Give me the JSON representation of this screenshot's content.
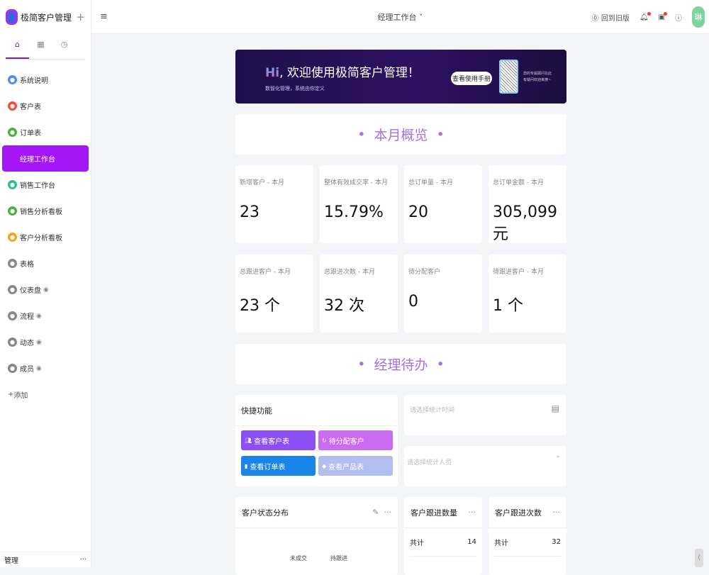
{
  "app": {
    "name": "极简客户管理",
    "avatar_char": "琳"
  },
  "sidebar": {
    "items": [
      {
        "label": "系统说明",
        "color": "#4f8cf7",
        "eye": false
      },
      {
        "label": "客户表",
        "color": "#f0503c",
        "eye": false
      },
      {
        "label": "订单表",
        "color": "#49b43c",
        "eye": false
      },
      {
        "label": "经理工作台",
        "color": "#a416f5",
        "eye": false,
        "active": true
      },
      {
        "label": "销售工作台",
        "color": "#2fbf8f",
        "eye": false
      },
      {
        "label": "销售分析看板",
        "color": "#49b43c",
        "eye": false
      },
      {
        "label": "客户分析看板",
        "color": "#f7a51c",
        "eye": false
      },
      {
        "label": "表格",
        "color": "#888",
        "eye": false
      },
      {
        "label": "仪表盘",
        "color": "#888",
        "eye": true
      },
      {
        "label": "流程",
        "color": "#888",
        "eye": true
      },
      {
        "label": "动态",
        "color": "#888",
        "eye": true
      },
      {
        "label": "成员",
        "color": "#888",
        "eye": true
      }
    ],
    "add": "添加",
    "footer": "管理"
  },
  "topbar": {
    "title": "经理工作台",
    "back_old": "回到旧版"
  },
  "banner": {
    "hi": "Hi",
    "title": "欢迎使用极简客户管理！",
    "subtitle": "数智化管理，系统由你定义",
    "button": "查看使用手册",
    "qr_text1": "您的专属顾问在此",
    "qr_text2": "有疑问欢迎来撩~"
  },
  "section1": "本月概览",
  "stats": [
    {
      "label": "新增客户 - 本月",
      "value": "23"
    },
    {
      "label": "整体有效成交率 - 本月",
      "value": "15.79%"
    },
    {
      "label": "总订单量 - 本月",
      "value": "20"
    },
    {
      "label": "总订单金额 - 本月",
      "value": "305,099 元"
    },
    {
      "label": "总跟进客户 - 本月",
      "value": "23 个"
    },
    {
      "label": "总跟进次数 - 本月",
      "value": "32 次"
    },
    {
      "label": "待分配客户",
      "value": "0"
    },
    {
      "label": "待跟进客户 - 本月",
      "value": "1 个"
    }
  ],
  "section2": "经理待办",
  "quick": {
    "title": "快捷功能",
    "buttons": [
      {
        "label": "查看客户表",
        "color": "#8b4ff5"
      },
      {
        "label": "待分配客户",
        "color": "#c96cf0"
      },
      {
        "label": "查看订单表",
        "color": "#1a85e8"
      },
      {
        "label": "查看产品表",
        "color": "#b2bef0"
      }
    ]
  },
  "filters": {
    "time_placeholder": "请选择统计时间",
    "person_placeholder": "请选择统计人员"
  },
  "status_chart": {
    "title": "客户状态分布",
    "labels": [
      "未成交",
      "待跟进"
    ]
  },
  "follow_count": {
    "title": "客户跟进数量",
    "total_label": "共计",
    "total": "14"
  },
  "follow_times": {
    "title": "客户跟进次数",
    "total_label": "共计",
    "total": "32"
  }
}
